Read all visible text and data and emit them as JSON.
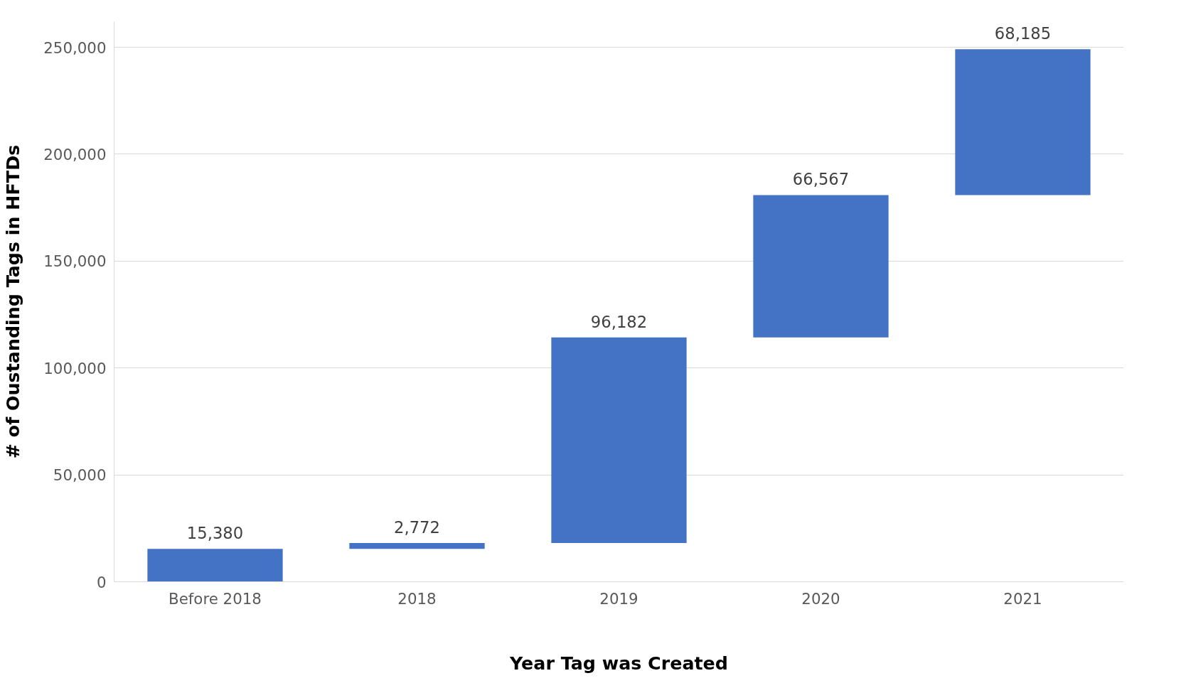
{
  "chart_data": {
    "type": "bar",
    "xlabel": "Year Tag was Created",
    "ylabel": "# of Oustanding Tags in HFTDs",
    "categories": [
      "Before 2018",
      "2018",
      "2019",
      "2020",
      "2021"
    ],
    "values": [
      15380,
      2772,
      96182,
      66567,
      68185
    ],
    "base": [
      0,
      15380,
      18152,
      114334,
      180901
    ],
    "color": "#4472c4",
    "ylim": [
      0,
      262000
    ],
    "yticks": [
      {
        "value": 0,
        "label": "0"
      },
      {
        "value": 50000,
        "label": "50,000"
      },
      {
        "value": 100000,
        "label": "100,000"
      },
      {
        "value": 150000,
        "label": "150,000"
      },
      {
        "value": 200000,
        "label": "200,000"
      },
      {
        "value": 250000,
        "label": "250,000"
      }
    ],
    "grid": "y",
    "value_labels": [
      "15,380",
      "2,772",
      "96,182",
      "66,567",
      "68,185"
    ]
  }
}
